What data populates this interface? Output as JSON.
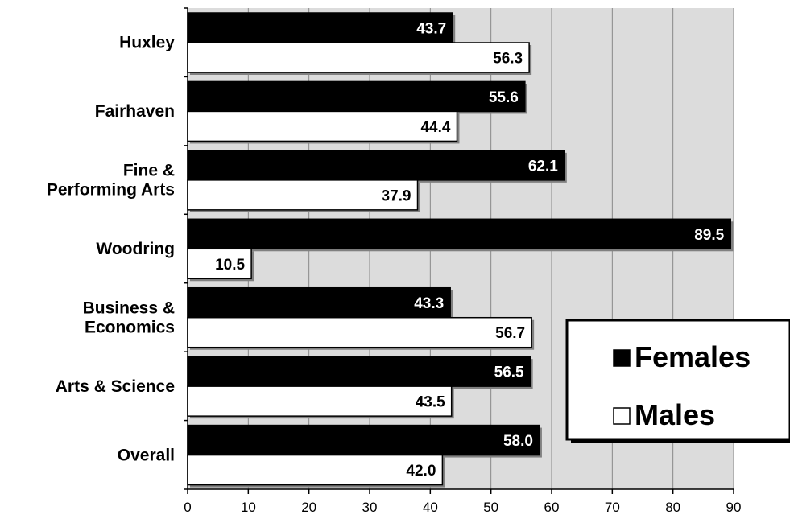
{
  "chart_data": {
    "type": "bar",
    "orientation": "horizontal",
    "categories": [
      "Huxley",
      "Fairhaven",
      "Fine & Performing Arts",
      "Woodring",
      "Business & Economics",
      "Arts & Science",
      "Overall"
    ],
    "category_lines": [
      [
        "Huxley"
      ],
      [
        "Fairhaven"
      ],
      [
        "Fine &",
        "Performing Arts"
      ],
      [
        "Woodring"
      ],
      [
        "Business &",
        "Economics"
      ],
      [
        "Arts & Science"
      ],
      [
        "Overall"
      ]
    ],
    "series": [
      {
        "name": "Females",
        "values": [
          43.7,
          55.6,
          62.1,
          89.5,
          43.3,
          56.5,
          58.0
        ],
        "labels": [
          "43.7",
          "55.6",
          "62.1",
          "89.5",
          "43.3",
          "56.5",
          "58.0"
        ],
        "color": "#000000",
        "label_color": "#ffffff"
      },
      {
        "name": "Males",
        "values": [
          56.3,
          44.4,
          37.9,
          10.5,
          56.7,
          43.5,
          42.0
        ],
        "labels": [
          "56.3",
          "44.4",
          "37.9",
          "10.5",
          "56.7",
          "43.5",
          "42.0"
        ],
        "color": "#ffffff",
        "label_color": "#000000"
      }
    ],
    "xlim": [
      0,
      90
    ],
    "xticks": [
      "0",
      "10",
      "20",
      "30",
      "40",
      "50",
      "60",
      "70",
      "80",
      "90"
    ],
    "grid": true,
    "plot_background": "#dcdcdc",
    "legend_position": "right",
    "title": "",
    "xlabel": "",
    "ylabel": ""
  }
}
